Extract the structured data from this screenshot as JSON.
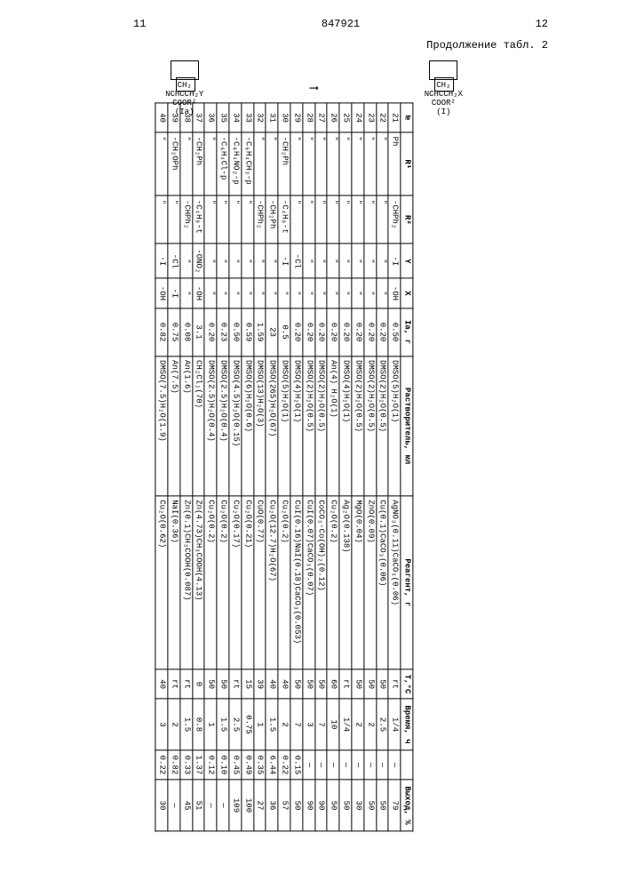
{
  "page": {
    "left_num": "11",
    "doc_num": "847921",
    "right_num": "12",
    "continuation": "Продолжение табл. 2",
    "formula_left_label": "(Ia)",
    "formula_right_label": "(I)",
    "formula_left_lines": [
      "CH₂",
      "NCHCCH₂Y",
      "COOR²"
    ],
    "formula_right_lines": [
      "CH₂",
      "NCHCCH₂X",
      "COOR²"
    ]
  },
  "columns": {
    "no": "№",
    "r1": "R¹",
    "r2": "R²",
    "y": "Y",
    "x": "X",
    "ia": "Ia, г",
    "solvent": "Растворитель, мл",
    "reagent": "Реагент, г",
    "temp": "T,°C",
    "time": "Время, ч",
    "aux": "",
    "yield": "Выход, %"
  },
  "rows": [
    {
      "no": "21",
      "r1": "Ph",
      "r2": "-CHPh₂",
      "y": "-I",
      "x": "-OH",
      "ia": "0.50",
      "solvent": "DMSO(5)H₂O(1)",
      "reagent": "AgNO₃(0.11)CaCO₃(0.06)",
      "temp": "rt",
      "time": "1/4",
      "aux": "—",
      "yield": "79"
    },
    {
      "no": "22",
      "r1": "\"",
      "r2": "\"",
      "y": "\"",
      "x": "\"",
      "ia": "0.20",
      "solvent": "DMSO(2)H₂O(0.5)",
      "reagent": "Cu(0.1)CaCO₃(0.06)",
      "temp": "50",
      "time": "2.5",
      "aux": "—",
      "yield": "50"
    },
    {
      "no": "23",
      "r1": "\"",
      "r2": "\"",
      "y": "\"",
      "x": "\"",
      "ia": "0.20",
      "solvent": "DMSO(2)H₂O(0.5)",
      "reagent": "ZnO(0.09)",
      "temp": "50",
      "time": "2",
      "aux": "—",
      "yield": "50"
    },
    {
      "no": "24",
      "r1": "\"",
      "r2": "\"",
      "y": "\"",
      "x": "\"",
      "ia": "0.20",
      "solvent": "DMSO(2)H₂O(0.5)",
      "reagent": "MgO(0.04)",
      "temp": "50",
      "time": "2",
      "aux": "—",
      "yield": "30"
    },
    {
      "no": "25",
      "r1": "\"",
      "r2": "\"",
      "y": "\"",
      "x": "\"",
      "ia": "0.20",
      "solvent": "DMSO(4)H₂O(1)",
      "reagent": "Ag₂O(0.138)",
      "temp": "rt",
      "time": "1/4",
      "aux": "—",
      "yield": "50"
    },
    {
      "no": "26",
      "r1": "\"",
      "r2": "\"",
      "y": "\"",
      "x": "\"",
      "ia": "0.20",
      "solvent": "An(4) H₂O(1)",
      "reagent": "Cu₂O(0.2)",
      "temp": "60",
      "time": "10",
      "aux": "—",
      "yield": "50"
    },
    {
      "no": "27",
      "r1": "\"",
      "r2": "\"",
      "y": "\"",
      "x": "\"",
      "ia": "0.20",
      "solvent": "DMSO(2)H₂O(0.5)",
      "reagent": "CoCO₃·Co(OH)₂(0.12)",
      "temp": "50",
      "time": "7",
      "aux": "—",
      "yield": "90"
    },
    {
      "no": "28",
      "r1": "\"",
      "r2": "\"",
      "y": "\"",
      "x": "\"",
      "ia": "0.20",
      "solvent": "DMSO(2)H₂O(0.5)",
      "reagent": "CuI(0.07)CaCO₃(0.07)",
      "temp": "50",
      "time": "3",
      "aux": "—",
      "yield": "90"
    },
    {
      "no": "29",
      "r1": "\"",
      "r2": "\"",
      "y": "-Cl",
      "x": "\"",
      "ia": "0.20",
      "solvent": "DMSO(4)H₂O(1)",
      "reagent": "CuI(0.16)NaI(0.18)CaCO₃(0.053)",
      "temp": "50",
      "time": "7",
      "aux": "0.15",
      "yield": "50"
    },
    {
      "no": "30",
      "r1": "-CH₂Ph",
      "r2": "-C₄H₉-t",
      "y": "-I",
      "x": "\"",
      "ia": "0.5",
      "solvent": "DMSO(5)H₂O(1)",
      "reagent": "Cu₂O(0.2)",
      "temp": "40",
      "time": "2",
      "aux": "0.22",
      "yield": "57"
    },
    {
      "no": "31",
      "r1": "\"",
      "r2": "-CH₂Ph",
      "y": "\"",
      "x": "\"",
      "ia": "23",
      "solvent": "DMSO(265)H₂O(67)",
      "reagent": "Cu₂O(12.7)H₂O(67)",
      "temp": "40",
      "time": "1.5",
      "aux": "6.44",
      "yield": "36"
    },
    {
      "no": "32",
      "r1": "\"",
      "r2": "-CHPh₂",
      "y": "\"",
      "x": "\"",
      "ia": "1.59",
      "solvent": "DMSO(13)H₂O(3)",
      "reagent": "CuO(0.77)",
      "temp": "39",
      "time": "1",
      "aux": "0.35",
      "yield": "27"
    },
    {
      "no": "33",
      "r1": "-C₆H₄CH₃-p",
      "r2": "\"",
      "y": "\"",
      "x": "\"",
      "ia": "0.59",
      "solvent": "DMSO(6)H₂O(0.6)",
      "reagent": "Cu₂O(0.21)",
      "temp": "15",
      "time": "0.75",
      "aux": "0.49",
      "yield": "100"
    },
    {
      "no": "34",
      "r1": "-C₆H₄NO₂-p",
      "r2": "\"",
      "y": "\"",
      "x": "\"",
      "ia": "0.50",
      "solvent": "DMSO(4.5)H₂O(0.15)",
      "reagent": "Cu₂O(0.17)",
      "temp": "rt",
      "time": "2.5",
      "aux": "0.45",
      "yield": "109"
    },
    {
      "no": "35",
      "r1": "-C₆H₄Cl-p",
      "r2": "\"",
      "y": "\"",
      "x": "\"",
      "ia": "0.23",
      "solvent": "DMSO(2.5)H₂O(0.4)",
      "reagent": "Cu₂O(0.2)",
      "temp": "50",
      "time": "1.5",
      "aux": "0.10",
      "yield": "—"
    },
    {
      "no": "36",
      "r1": "\"",
      "r2": "\"",
      "y": "\"",
      "x": "\"",
      "ia": "0.20",
      "solvent": "DMSO(2.5)H₂O(0.4)",
      "reagent": "Cu₂O(0.2)",
      "temp": "50",
      "time": "1",
      "aux": "0.12",
      "yield": "—"
    },
    {
      "no": "37",
      "r1": "-CH₂Ph",
      "r2": "-C₄H₉-t",
      "y": "-ONO₂",
      "x": "-OH",
      "ia": "3.1",
      "solvent": "CH₂Cl₂(70)",
      "reagent": "Zn(4.73)CH₃COOH(4.13)",
      "temp": "0",
      "time": "0.8",
      "aux": "1.37",
      "yield": "51"
    },
    {
      "no": "38",
      "r1": "\"",
      "r2": "-CHPh₂",
      "y": "\"",
      "x": "\"",
      "ia": "0.08",
      "solvent": "An(1.6)",
      "reagent": "Zn(0.1)CH₃COOH(0.087)",
      "temp": "rt",
      "time": "1.5",
      "aux": "0.33",
      "yield": "45"
    },
    {
      "no": "39",
      "r1": "-CH₂OPh",
      "r2": "\"",
      "y": "-Cl",
      "x": "-I",
      "ia": "0.75",
      "solvent": "An(7.5)",
      "reagent": "NaI(0.36)",
      "temp": "rt",
      "time": "2",
      "aux": "0.82",
      "yield": "—"
    },
    {
      "no": "40",
      "r1": "\"",
      "r2": "\"",
      "y": "-I",
      "x": "-OH",
      "ia": "0.82",
      "solvent": "DMSO(7.5)H₂O(1.9)",
      "reagent": "Cu₂O(0.62)",
      "temp": "40",
      "time": "3",
      "aux": "0.22",
      "yield": "30"
    }
  ]
}
